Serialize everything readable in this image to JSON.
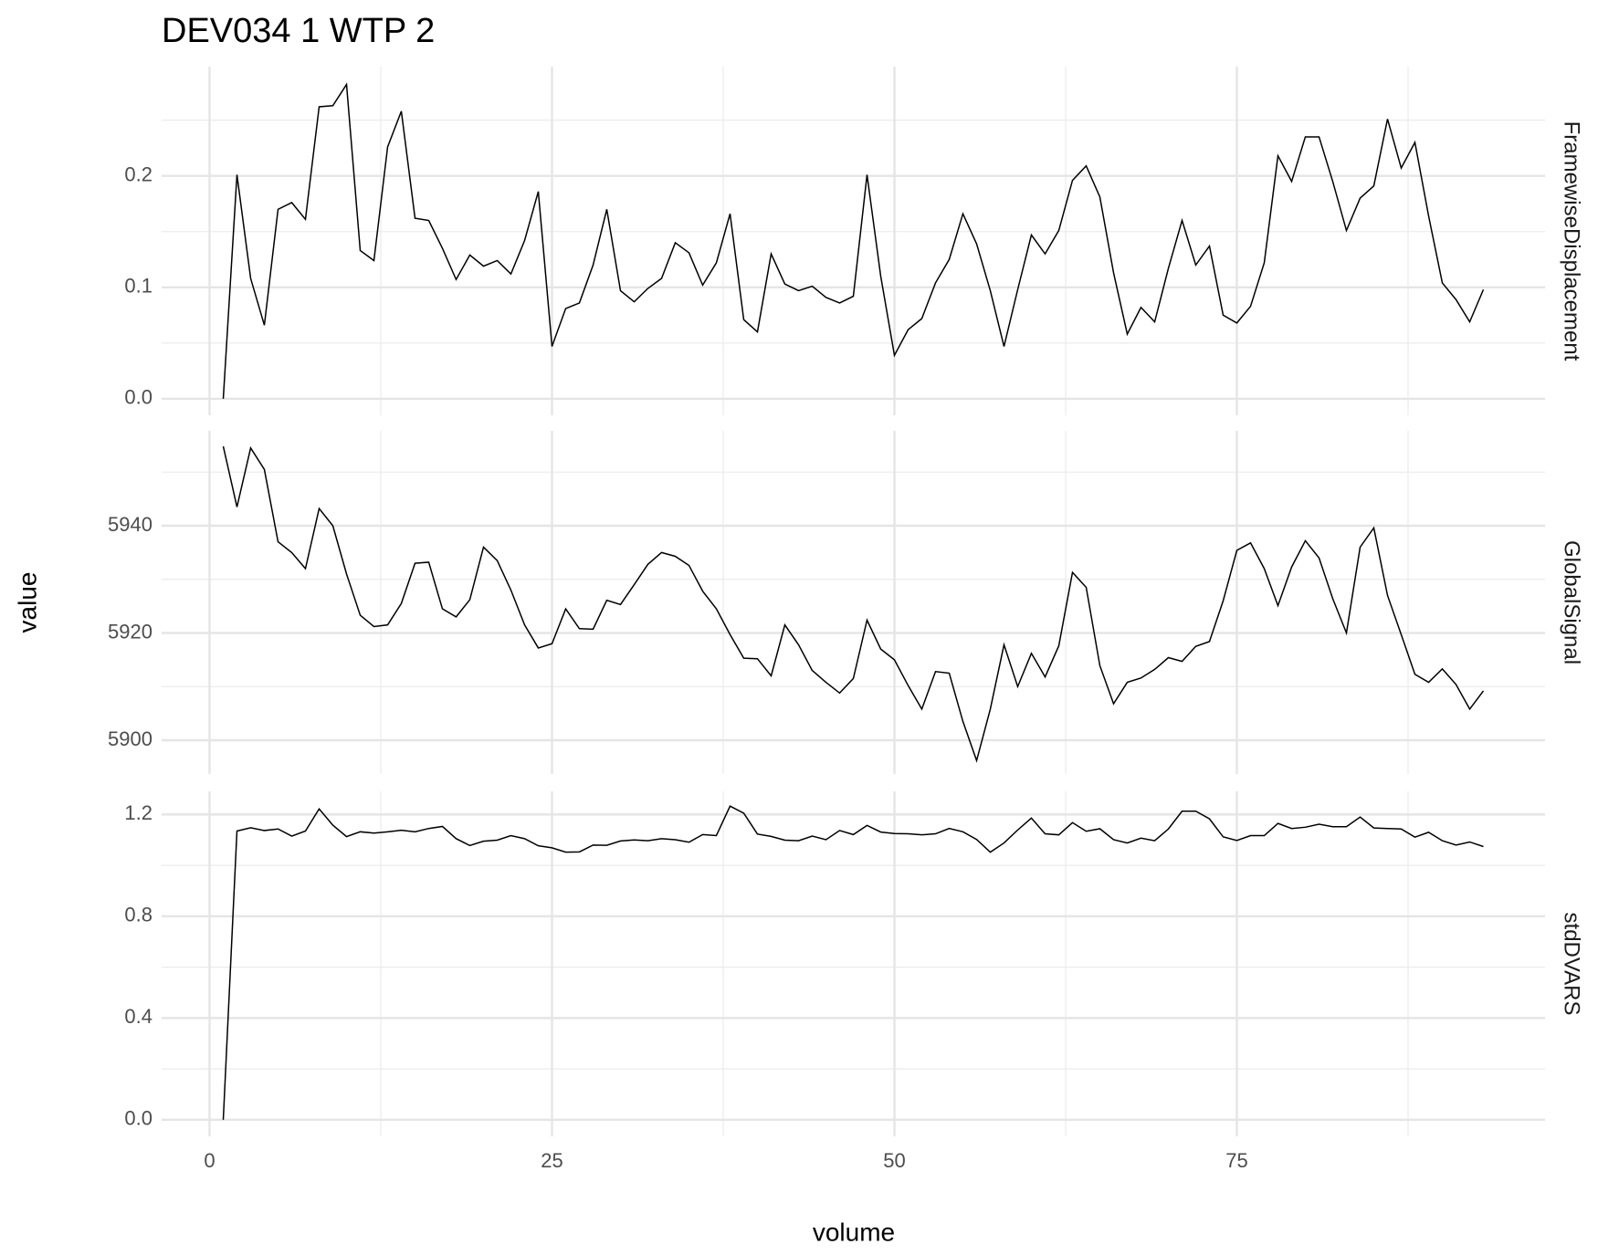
{
  "chart_data": {
    "type": "line",
    "title": "DEV034  1  WTP  2",
    "xlabel": "volume",
    "ylabel": "value",
    "x": [
      1,
      2,
      3,
      4,
      5,
      6,
      7,
      8,
      9,
      10,
      11,
      12,
      13,
      14,
      15,
      16,
      17,
      18,
      19,
      20,
      21,
      22,
      23,
      24,
      25,
      26,
      27,
      28,
      29,
      30,
      31,
      32,
      33,
      34,
      35,
      36,
      37,
      38,
      39,
      40,
      41,
      42,
      43,
      44,
      45,
      46,
      47,
      48,
      49,
      50,
      51,
      52,
      53,
      54,
      55,
      56,
      57,
      58,
      59,
      60,
      61,
      62,
      63,
      64,
      65,
      66,
      67,
      68,
      69,
      70,
      71,
      72,
      73,
      74,
      75,
      76,
      77,
      78,
      79,
      80,
      81,
      82,
      83,
      84,
      85,
      86,
      87,
      88,
      89,
      90,
      91,
      92,
      93
    ],
    "xlim": [
      -3.5,
      97.5
    ],
    "xticks": [
      0,
      25,
      50,
      75
    ],
    "minor_xticks": [
      12.5,
      37.5,
      62.5,
      87.5
    ],
    "grid": true,
    "series": [
      {
        "name": "FramewiseDisplacement",
        "color": "#000000",
        "ylim": [
          -0.0148,
          0.298
        ],
        "yticks": [
          {
            "value": 0,
            "label": "0.0"
          },
          0.1,
          0.2
        ],
        "minor_yticks": [
          0.05,
          0.15,
          0.25
        ],
        "values": [
          0,
          0.201,
          0.108,
          0.066,
          0.17,
          0.176,
          0.161,
          0.262,
          0.263,
          0.282,
          0.133,
          0.124,
          0.226,
          0.258,
          0.162,
          0.16,
          0.135,
          0.107,
          0.129,
          0.119,
          0.124,
          0.112,
          0.142,
          0.186,
          0.047,
          0.081,
          0.086,
          0.12,
          0.17,
          0.097,
          0.087,
          0.099,
          0.108,
          0.14,
          0.131,
          0.102,
          0.122,
          0.166,
          0.071,
          0.06,
          0.13,
          0.103,
          0.097,
          0.101,
          0.091,
          0.086,
          0.092,
          0.201,
          0.11,
          0.039,
          0.062,
          0.072,
          0.104,
          0.125,
          0.166,
          0.139,
          0.097,
          0.047,
          0.098,
          0.147,
          0.13,
          0.151,
          0.196,
          0.209,
          0.181,
          0.113,
          0.058,
          0.082,
          0.069,
          0.117,
          0.16,
          0.12,
          0.137,
          0.075,
          0.068,
          0.083,
          0.122,
          0.218,
          0.195,
          0.235,
          0.235,
          0.195,
          0.151,
          0.18,
          0.191,
          0.251,
          0.207,
          0.23,
          0.164,
          0.104,
          0.089,
          0.069,
          0.098
        ]
      },
      {
        "name": "GlobalSignal",
        "color": "#000000",
        "ylim": [
          5893.7,
          5957.7
        ],
        "yticks": [
          5900,
          5920,
          5940
        ],
        "minor_yticks": [
          5910,
          5930,
          5950
        ],
        "values": [
          5954.8,
          5943.5,
          5954.5,
          5950.5,
          5937,
          5935,
          5932,
          5943.2,
          5940,
          5931,
          5923.3,
          5921.2,
          5921.5,
          5925.5,
          5933,
          5933.2,
          5924.5,
          5923,
          5926.2,
          5936,
          5933.5,
          5928,
          5921.5,
          5917.2,
          5918,
          5924.5,
          5920.8,
          5920.7,
          5926.1,
          5925.3,
          5929,
          5932.8,
          5935,
          5934.3,
          5932.6,
          5927.8,
          5924.5,
          5919.7,
          5915.3,
          5915.2,
          5912,
          5921.5,
          5917.8,
          5913,
          5910.8,
          5908.8,
          5911.5,
          5922.4,
          5917,
          5915,
          5910.2,
          5905.8,
          5912.8,
          5912.5,
          5903.5,
          5896.2,
          5905.8,
          5917.8,
          5910,
          5916.2,
          5911.8,
          5917.6,
          5931.3,
          5928.5,
          5913.9,
          5906.8,
          5910.8,
          5911.6,
          5913.2,
          5915.4,
          5914.7,
          5917.5,
          5918.4,
          5926,
          5935.4,
          5936.8,
          5932,
          5925.1,
          5932.3,
          5937.2,
          5934,
          5926.4,
          5920,
          5936,
          5939.6,
          5927,
          5919.7,
          5912.3,
          5910.8,
          5913.3,
          5910.4,
          5905.8,
          5909.2
        ]
      },
      {
        "name": "stdDVARS",
        "color": "#000000",
        "ylim": [
          -0.065,
          1.291
        ],
        "yticks": [
          {
            "value": 0,
            "label": "0.0"
          },
          0.4,
          0.8,
          1.2
        ],
        "minor_yticks": [
          0.2,
          0.6,
          1.0
        ],
        "values": [
          0,
          1.135,
          1.148,
          1.137,
          1.143,
          1.115,
          1.135,
          1.222,
          1.158,
          1.113,
          1.132,
          1.127,
          1.132,
          1.138,
          1.132,
          1.145,
          1.153,
          1.105,
          1.078,
          1.095,
          1.099,
          1.117,
          1.105,
          1.077,
          1.069,
          1.052,
          1.053,
          1.08,
          1.079,
          1.096,
          1.1,
          1.097,
          1.105,
          1.101,
          1.091,
          1.121,
          1.117,
          1.233,
          1.205,
          1.123,
          1.114,
          1.099,
          1.097,
          1.115,
          1.101,
          1.137,
          1.121,
          1.157,
          1.131,
          1.125,
          1.124,
          1.12,
          1.124,
          1.145,
          1.132,
          1.102,
          1.052,
          1.088,
          1.139,
          1.186,
          1.124,
          1.12,
          1.168,
          1.134,
          1.144,
          1.101,
          1.088,
          1.107,
          1.097,
          1.143,
          1.213,
          1.213,
          1.183,
          1.112,
          1.098,
          1.117,
          1.117,
          1.165,
          1.145,
          1.15,
          1.162,
          1.152,
          1.152,
          1.19,
          1.147,
          1.145,
          1.143,
          1.111,
          1.13,
          1.097,
          1.08,
          1.092,
          1.074
        ]
      }
    ]
  }
}
